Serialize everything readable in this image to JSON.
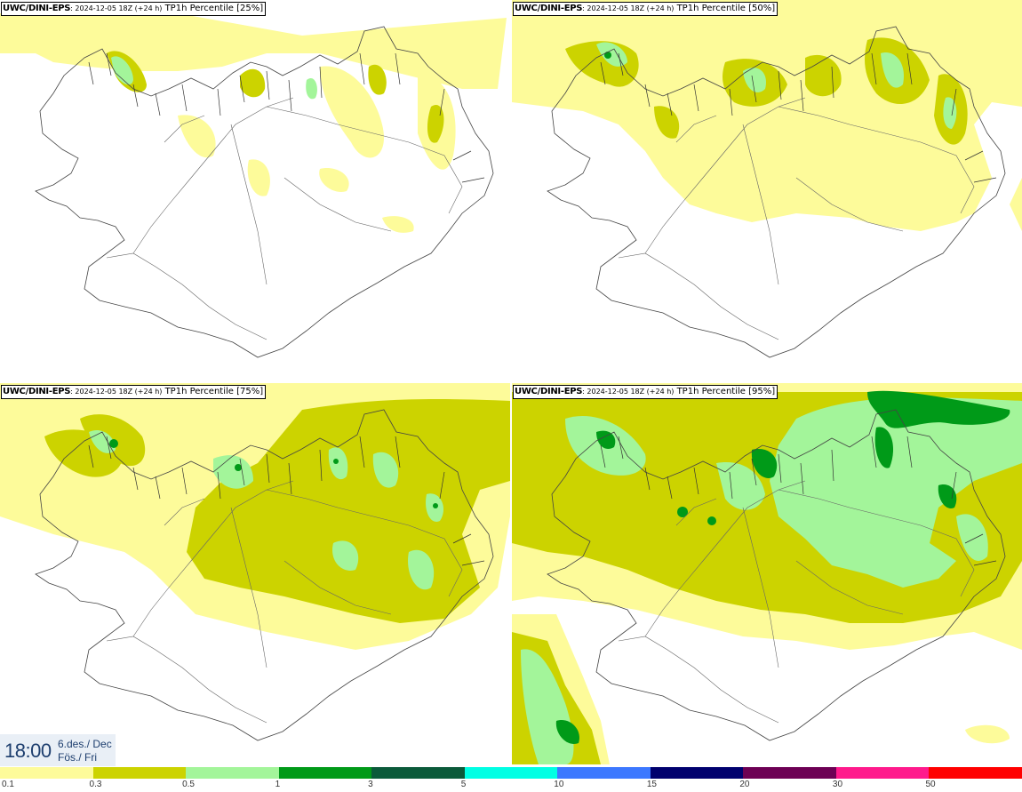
{
  "palette": {
    "p01": "#fdfb9a",
    "p03": "#ccd300",
    "p05": "#a3f59a",
    "p1": "#009a18",
    "p3": "#0b5a3a",
    "p5": "#00ffe4",
    "p10": "#3c78ff",
    "p15": "#00006e",
    "p20": "#6d0054",
    "p30": "#ff1a8c",
    "p50": "#ff0000"
  },
  "panels": [
    {
      "model": "UWC/DINI-EPS",
      "run": ": 2024-12-05 18Z (+24 h)",
      "label": " TP1h Percentile [25%]"
    },
    {
      "model": "UWC/DINI-EPS",
      "run": ": 2024-12-05 18Z (+24 h)",
      "label": " TP1h Percentile [50%]"
    },
    {
      "model": "UWC/DINI-EPS",
      "run": ": 2024-12-05 18Z (+24 h)",
      "label": " TP1h Percentile [75%]"
    },
    {
      "model": "UWC/DINI-EPS",
      "run": ": 2024-12-05 18Z (+24 h)",
      "label": " TP1h Percentile [95%]"
    }
  ],
  "valid_time": {
    "time": "18:00",
    "date_line1": "6.des./ Dec",
    "date_line2": "Fös./ Fri"
  },
  "legend": {
    "ticks": [
      "0.1",
      "0.3",
      "0.5",
      "1",
      "3",
      "5",
      "10",
      "15",
      "20",
      "30",
      "50"
    ],
    "colors": [
      "#fdfb9a",
      "#ccd300",
      "#a3f59a",
      "#009a18",
      "#0b5a3a",
      "#00ffe4",
      "#3c78ff",
      "#00006e",
      "#6d0054",
      "#ff1a8c",
      "#ff0000"
    ]
  }
}
